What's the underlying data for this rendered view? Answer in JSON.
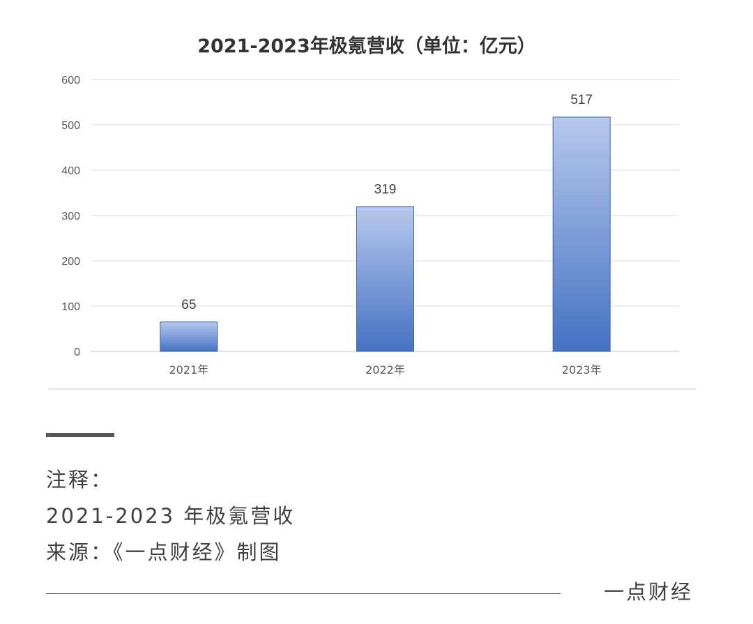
{
  "chart_data": {
    "type": "bar",
    "title": "2021-2023年极氪营收（单位：亿元）",
    "categories": [
      "2021年",
      "2022年",
      "2023年"
    ],
    "values": [
      65,
      319,
      517
    ],
    "value_labels": [
      "65",
      "319",
      "517"
    ],
    "ylim": [
      0,
      600
    ],
    "yticks": [
      "0",
      "100",
      "200",
      "300",
      "400",
      "500",
      "600"
    ],
    "grid": true,
    "legend": "none",
    "colors": {
      "bar_top": "#b7c8ec",
      "bar_bottom": "#4472c4",
      "bar_edge": "#3a63ad",
      "grid": "#e4e4e4",
      "axis": "#d0d0d0"
    }
  },
  "notes": {
    "heading": "注释：",
    "line1": "2021-2023 年极氪营收",
    "line2": "来源：《一点财经》制图"
  },
  "footer": {
    "brand": "一点财经"
  }
}
